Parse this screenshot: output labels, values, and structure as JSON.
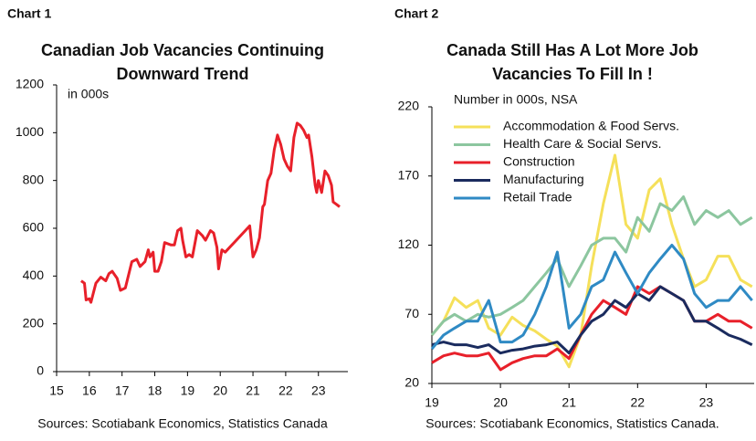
{
  "chart_data": [
    {
      "type": "line",
      "label": "Chart 1",
      "title": "Canadian Job Vacancies Continuing Downward Trend",
      "subtitle": "in 000s",
      "source": "Sources: Scotiabank Economics, Statistics Canada",
      "x": [
        15.75,
        15.85,
        15.9,
        16.0,
        16.05,
        16.2,
        16.35,
        16.5,
        16.6,
        16.7,
        16.85,
        16.95,
        17.1,
        17.3,
        17.45,
        17.55,
        17.7,
        17.8,
        17.85,
        17.95,
        18.0,
        18.1,
        18.2,
        18.3,
        18.5,
        18.6,
        18.7,
        18.8,
        18.85,
        18.95,
        19.05,
        19.15,
        19.3,
        19.45,
        19.55,
        19.7,
        19.8,
        19.9,
        19.95,
        20.05,
        20.15,
        20.9,
        21.0,
        21.1,
        21.2,
        21.3,
        21.35,
        21.45,
        21.55,
        21.65,
        21.75,
        21.85,
        21.95,
        22.05,
        22.15,
        22.25,
        22.35,
        22.45,
        22.55,
        22.65,
        22.7,
        22.8,
        22.9,
        22.95,
        23.0,
        23.1,
        23.2,
        23.3,
        23.4,
        23.45,
        23.55,
        23.65
      ],
      "series": [
        {
          "color": "#e8202a",
          "values": [
            380,
            370,
            300,
            305,
            290,
            370,
            395,
            380,
            410,
            420,
            390,
            340,
            350,
            460,
            470,
            440,
            460,
            510,
            480,
            500,
            420,
            420,
            460,
            540,
            530,
            530,
            590,
            600,
            550,
            480,
            490,
            480,
            590,
            570,
            550,
            590,
            580,
            520,
            430,
            510,
            500,
            610,
            480,
            510,
            560,
            690,
            700,
            800,
            830,
            930,
            990,
            950,
            890,
            860,
            840,
            980,
            1040,
            1030,
            1010,
            980,
            990,
            900,
            780,
            750,
            800,
            750,
            840,
            820,
            780,
            710,
            700,
            690
          ]
        }
      ],
      "xlim": [
        15,
        23.9
      ],
      "xticks": [
        15,
        16,
        17,
        18,
        19,
        20,
        21,
        22,
        23
      ],
      "ylim": [
        0,
        1200
      ],
      "yticks": [
        0,
        200,
        400,
        600,
        800,
        1000,
        1200
      ],
      "grid": false
    },
    {
      "type": "line",
      "label": "Chart 2",
      "title": "Canada Still Has A Lot More Job Vacancies To Fill In !",
      "subtitle": "Number in 000s, NSA",
      "source": "Sources: Scotiabank Economics, Statistics Canada.",
      "x": [
        19.0,
        19.17,
        19.33,
        19.5,
        19.67,
        19.83,
        20.0,
        20.17,
        20.33,
        20.5,
        20.67,
        20.83,
        21.0,
        21.17,
        21.33,
        21.5,
        21.67,
        21.83,
        22.0,
        22.17,
        22.33,
        22.5,
        22.67,
        22.83,
        23.0,
        23.17,
        23.33,
        23.5,
        23.67
      ],
      "series": [
        {
          "name": "Accommodation & Food Servs.",
          "color": "#f5e05a",
          "values": [
            55,
            65,
            82,
            75,
            80,
            60,
            55,
            68,
            62,
            58,
            52,
            47,
            32,
            55,
            105,
            150,
            185,
            135,
            125,
            160,
            168,
            135,
            110,
            90,
            95,
            112,
            112,
            95,
            90
          ]
        },
        {
          "name": "Health Care & Social Servs.",
          "color": "#8cc69f",
          "values": [
            55,
            65,
            70,
            65,
            70,
            68,
            70,
            75,
            80,
            90,
            100,
            110,
            90,
            105,
            120,
            125,
            125,
            115,
            140,
            130,
            150,
            145,
            155,
            135,
            145,
            140,
            145,
            135,
            140
          ]
        },
        {
          "name": "Construction",
          "color": "#e8202a",
          "values": [
            35,
            40,
            42,
            40,
            40,
            42,
            30,
            35,
            38,
            40,
            40,
            45,
            38,
            55,
            70,
            80,
            75,
            70,
            90,
            85,
            90,
            85,
            80,
            65,
            65,
            70,
            65,
            65,
            60
          ]
        },
        {
          "name": "Manufacturing",
          "color": "#1a2b5e",
          "values": [
            48,
            50,
            48,
            48,
            46,
            48,
            42,
            44,
            45,
            47,
            48,
            50,
            42,
            55,
            65,
            70,
            80,
            75,
            85,
            80,
            90,
            85,
            80,
            65,
            65,
            60,
            55,
            52,
            48
          ]
        },
        {
          "name": "Retail Trade",
          "color": "#2f8ac4",
          "values": [
            45,
            55,
            60,
            65,
            65,
            80,
            50,
            50,
            55,
            70,
            90,
            115,
            60,
            70,
            90,
            95,
            115,
            100,
            85,
            100,
            110,
            120,
            110,
            85,
            75,
            80,
            80,
            90,
            80
          ]
        }
      ],
      "xlim": [
        19,
        23.7
      ],
      "xticks": [
        19,
        20,
        21,
        22,
        23
      ],
      "ylim": [
        20,
        220
      ],
      "yticks": [
        20,
        70,
        120,
        170,
        220
      ],
      "grid": false,
      "legend": "upper left"
    }
  ]
}
